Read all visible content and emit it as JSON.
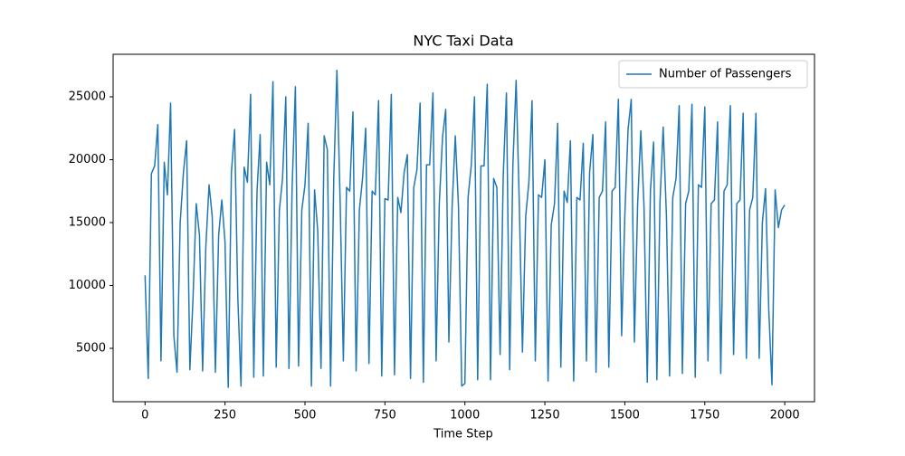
{
  "chart_data": {
    "type": "line",
    "title": "NYC Taxi Data",
    "x_label": "Time Step",
    "x": [
      0,
      10,
      20,
      30,
      40,
      50,
      60,
      70,
      80,
      90,
      100,
      110,
      120,
      130,
      140,
      150,
      160,
      170,
      180,
      190,
      200,
      210,
      220,
      230,
      240,
      250,
      260,
      270,
      280,
      290,
      300,
      310,
      320,
      330,
      340,
      350,
      360,
      370,
      380,
      390,
      400,
      410,
      420,
      430,
      440,
      450,
      460,
      470,
      480,
      490,
      500,
      510,
      520,
      530,
      540,
      550,
      560,
      570,
      580,
      590,
      600,
      610,
      620,
      630,
      640,
      650,
      660,
      670,
      680,
      690,
      700,
      710,
      720,
      730,
      740,
      750,
      760,
      770,
      780,
      790,
      800,
      810,
      820,
      830,
      840,
      850,
      860,
      870,
      880,
      890,
      900,
      910,
      920,
      930,
      940,
      950,
      960,
      970,
      980,
      990,
      1000,
      1010,
      1020,
      1030,
      1040,
      1050,
      1060,
      1070,
      1080,
      1090,
      1100,
      1110,
      1120,
      1130,
      1140,
      1150,
      1160,
      1170,
      1180,
      1190,
      1200,
      1210,
      1220,
      1230,
      1240,
      1250,
      1260,
      1270,
      1280,
      1290,
      1300,
      1310,
      1320,
      1330,
      1340,
      1350,
      1360,
      1370,
      1380,
      1390,
      1400,
      1410,
      1420,
      1430,
      1440,
      1450,
      1460,
      1470,
      1480,
      1490,
      1500,
      1510,
      1520,
      1530,
      1540,
      1550,
      1560,
      1570,
      1580,
      1590,
      1600,
      1610,
      1620,
      1630,
      1640,
      1650,
      1660,
      1670,
      1680,
      1690,
      1700,
      1710,
      1720,
      1730,
      1740,
      1750,
      1760,
      1770,
      1780,
      1790,
      1800,
      1810,
      1820,
      1830,
      1840,
      1850,
      1860,
      1870,
      1880,
      1890,
      1900,
      1910,
      1920,
      1930,
      1940,
      1950,
      1960,
      1970,
      1980,
      1990,
      2000
    ],
    "series": [
      {
        "name": "Number of Passengers",
        "color": "#1f77b4",
        "values": [
          10800,
          2600,
          18900,
          19500,
          22800,
          4000,
          19800,
          17200,
          24500,
          6000,
          3100,
          15000,
          19000,
          21500,
          3300,
          9000,
          16500,
          14000,
          3200,
          13000,
          18000,
          15500,
          3100,
          14000,
          16800,
          13500,
          1900,
          19000,
          22400,
          9000,
          2000,
          19400,
          18200,
          25200,
          2700,
          17500,
          22000,
          2800,
          19800,
          18000,
          26200,
          3500,
          16000,
          18500,
          25000,
          3400,
          17800,
          25800,
          3600,
          16000,
          18000,
          22900,
          2000,
          17600,
          14300,
          3400,
          21900,
          20800,
          2000,
          18500,
          27100,
          16500,
          4000,
          17800,
          17500,
          23800,
          3200,
          16000,
          18500,
          22500,
          3800,
          17500,
          17200,
          24700,
          2800,
          16900,
          16800,
          25200,
          2900,
          17000,
          15800,
          19000,
          20400,
          2600,
          17800,
          19200,
          24500,
          2300,
          19600,
          19600,
          25300,
          4000,
          16500,
          21800,
          24000,
          5500,
          16300,
          21900,
          16300,
          2000,
          2200,
          17000,
          19600,
          25000,
          2500,
          19500,
          19500,
          26000,
          2500,
          18500,
          17800,
          4500,
          18800,
          25300,
          3300,
          19500,
          26300,
          16500,
          4700,
          15500,
          18200,
          24700,
          4000,
          17200,
          17000,
          20000,
          2400,
          14800,
          16500,
          22900,
          3500,
          17500,
          16600,
          21500,
          2400,
          17000,
          16800,
          21300,
          4000,
          19000,
          22000,
          3100,
          17000,
          17500,
          23000,
          3500,
          17500,
          17800,
          24800,
          6000,
          15500,
          22400,
          24800,
          5500,
          16500,
          22300,
          16300,
          2300,
          17500,
          21400,
          2500,
          16700,
          22600,
          15500,
          2800,
          17000,
          18500,
          24300,
          3000,
          16500,
          17500,
          24400,
          2700,
          18000,
          17800,
          24200,
          4000,
          16500,
          16800,
          23000,
          3000,
          17500,
          18000,
          24300,
          4500,
          16500,
          16800,
          23700,
          4200,
          16000,
          17000,
          23700,
          4200,
          15000,
          17700,
          8000,
          2100,
          17600,
          14600,
          16000,
          16400
        ]
      }
    ],
    "xlim": [
      -99.8,
      2093
    ],
    "ylim": [
      755,
      28381
    ],
    "xticks": [
      0,
      250,
      500,
      750,
      1000,
      1250,
      1500,
      1750,
      2000
    ],
    "yticks": [
      5000,
      10000,
      15000,
      20000,
      25000
    ],
    "legend": "upper right"
  }
}
